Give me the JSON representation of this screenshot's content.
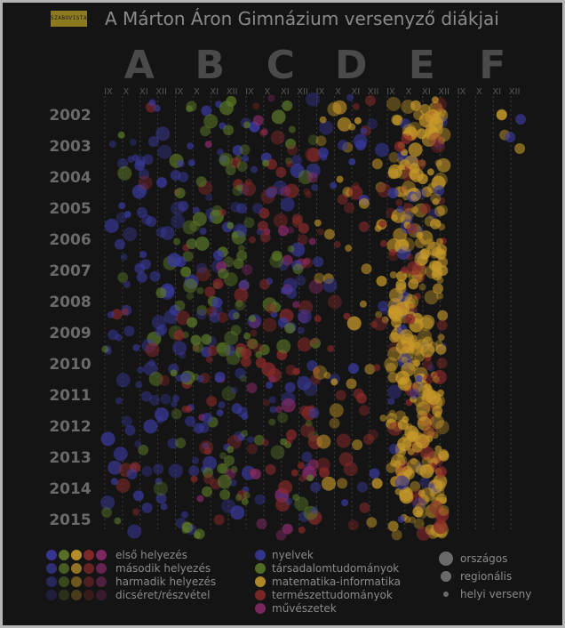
{
  "logo_text": "SZABOVISTA",
  "chart_data": {
    "type": "scatter",
    "title": "A Márton Áron Gimnázium versenyző diákjai",
    "classes": [
      "A",
      "B",
      "C",
      "D",
      "E",
      "F"
    ],
    "grades": [
      "IX",
      "X",
      "XI",
      "XII"
    ],
    "years": [
      "2002",
      "2003",
      "2004",
      "2005",
      "2006",
      "2007",
      "2008",
      "2009",
      "2010",
      "2011",
      "2012",
      "2013",
      "2014",
      "2015"
    ],
    "ylim": [
      2002,
      2015
    ],
    "grid": true,
    "legend_placement": "bottom",
    "category_colors": {
      "nyelvek": "#3a3aa0",
      "társadalomtudományok": "#5c7a28",
      "matematika-informatika": "#c89a2a",
      "természettudományok": "#8a2a2a",
      "művészetek": "#8a2a6a"
    },
    "legend": {
      "placement_rows": [
        "első helyezés",
        "második helyezés",
        "harmadik helyezés",
        "dicséret/részvétel"
      ],
      "categories": [
        "nyelvek",
        "társadalomtudományok",
        "matematika-informatika",
        "természettudományok",
        "művészetek"
      ],
      "levels": [
        "országos",
        "regionális",
        "helyi verseny"
      ]
    },
    "density": {
      "A": [
        1,
        3,
        3,
        2,
        2,
        3,
        3,
        3,
        3,
        3,
        2,
        3,
        3,
        2
      ],
      "B": [
        3,
        4,
        5,
        5,
        5,
        6,
        5,
        5,
        5,
        5,
        5,
        5,
        5,
        4
      ],
      "C": [
        3,
        4,
        5,
        4,
        4,
        4,
        5,
        5,
        5,
        4,
        4,
        5,
        5,
        3
      ],
      "D": [
        4,
        3,
        3,
        2,
        3,
        2,
        2,
        2,
        2,
        2,
        2,
        2,
        2,
        1
      ],
      "E": [
        8,
        8,
        9,
        9,
        9,
        9,
        9,
        10,
        10,
        10,
        10,
        12,
        11,
        8
      ],
      "F": [
        1,
        1,
        0,
        0,
        0,
        0,
        0,
        0,
        0,
        0,
        0,
        0,
        0,
        0
      ]
    },
    "mix": {
      "A": {
        "nyelvek": 0.8,
        "társadalomtudományok": 0.1,
        "természettudományok": 0.1
      },
      "B": {
        "nyelvek": 0.3,
        "társadalomtudományok": 0.45,
        "természettudományok": 0.2,
        "művészetek": 0.05
      },
      "C": {
        "nyelvek": 0.3,
        "társadalomtudományok": 0.2,
        "természettudományok": 0.35,
        "művészetek": 0.15
      },
      "D": {
        "matematika-informatika": 0.5,
        "természettudományok": 0.3,
        "nyelvek": 0.2
      },
      "E": {
        "matematika-informatika": 0.75,
        "természettudományok": 0.15,
        "nyelvek": 0.1
      },
      "F": {
        "matematika-informatika": 0.6,
        "nyelvek": 0.4
      }
    }
  }
}
